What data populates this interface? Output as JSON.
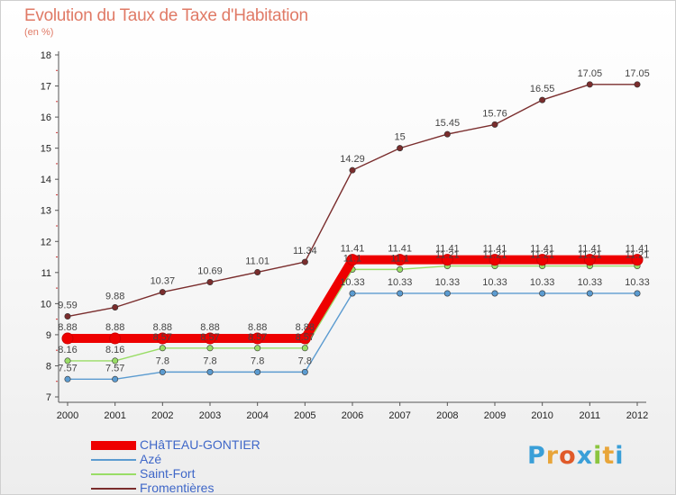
{
  "header": {
    "title": "Evolution du Taux de Taxe d'Habitation",
    "subtitle": "(en %)"
  },
  "brand": {
    "text": "Proxiti",
    "letters": [
      "P",
      "r",
      "o",
      "x",
      "i",
      "t",
      "i"
    ],
    "colors": [
      "#3a9fd8",
      "#e8a53a",
      "#e05a2a",
      "#3a9fd8",
      "#8bc53f",
      "#e8a53a",
      "#3a9fd8"
    ]
  },
  "chart_data": {
    "type": "line",
    "title": "Evolution du Taux de Taxe d'Habitation",
    "ylabel": "(en %)",
    "xlabel": "",
    "ylim": [
      7,
      18
    ],
    "yticks": [
      "7",
      "8",
      "9",
      "10",
      "11",
      "12",
      "13",
      "14",
      "15",
      "16",
      "17",
      "18"
    ],
    "grid": false,
    "legend_position": "bottom-left",
    "categories": [
      "2000",
      "2001",
      "2002",
      "2003",
      "2004",
      "2005",
      "2006",
      "2007",
      "2008",
      "2009",
      "2010",
      "2011",
      "2012"
    ],
    "series": [
      {
        "name": "CHâTEAU-GONTIER",
        "color": "#ee0000",
        "values": [
          8.88,
          8.88,
          8.88,
          8.88,
          8.88,
          8.88,
          11.41,
          11.41,
          11.41,
          11.41,
          11.41,
          11.41,
          11.41
        ],
        "labels": [
          "8.88",
          "8.88",
          "8.88",
          "8.88",
          "8.88",
          "8.88",
          "11.41",
          "11.41",
          "11.41",
          "11.41",
          "11.41",
          "11.41",
          "11.41"
        ]
      },
      {
        "name": "Azé",
        "color": "#5b9bd0",
        "values": [
          7.57,
          7.57,
          7.8,
          7.8,
          7.8,
          7.8,
          10.33,
          10.33,
          10.33,
          10.33,
          10.33,
          10.33,
          10.33
        ],
        "labels": [
          "7.57",
          "7.57",
          "7.8",
          "7.8",
          "7.8",
          "7.8",
          "10.33",
          "10.33",
          "10.33",
          "10.33",
          "10.33",
          "10.33",
          "10.33"
        ]
      },
      {
        "name": "Saint-Fort",
        "color": "#99dd66",
        "values": [
          8.16,
          8.16,
          8.57,
          8.57,
          8.57,
          8.57,
          11.1,
          11.1,
          11.21,
          11.21,
          11.21,
          11.21,
          11.21
        ],
        "labels": [
          "8.16",
          "8.16",
          "8.57",
          "8.57",
          "8.57",
          "8.57",
          "11.1",
          "11.1",
          "11.21",
          "11.21",
          "11.21",
          "11.21",
          "11.21"
        ]
      },
      {
        "name": "Fromentières",
        "color": "#7a2d2d",
        "values": [
          9.59,
          9.88,
          10.37,
          10.69,
          11.01,
          11.34,
          14.29,
          15,
          15.45,
          15.76,
          16.55,
          17.05,
          17.05
        ],
        "labels": [
          "9.59",
          "9.88",
          "10.37",
          "10.69",
          "11.01",
          "11.34",
          "14.29",
          "15",
          "15.45",
          "15.76",
          "16.55",
          "17.05",
          "17.05"
        ]
      }
    ]
  }
}
